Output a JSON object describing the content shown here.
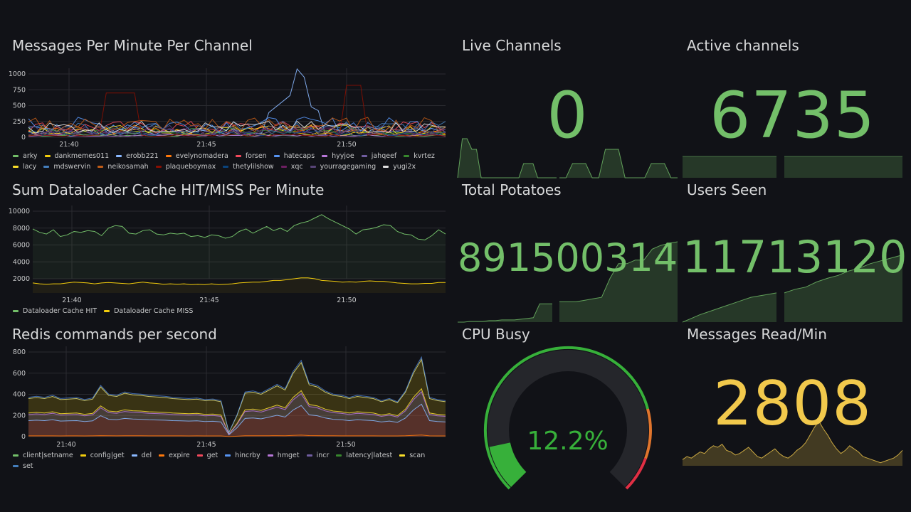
{
  "colors": {
    "green": "#73bf69",
    "yellow": "#f2c94c",
    "grid": "#2a2b30",
    "axis": "#c7c8c9"
  },
  "panels": {
    "messages_per_channel": {
      "title": "Messages Per Minute Per Channel",
      "y_ticks": [
        "1000",
        "750",
        "500",
        "250",
        "0"
      ],
      "x_ticks": [
        "21:40",
        "21:45",
        "21:50"
      ],
      "legend": [
        {
          "name": "arky",
          "color": "#73bf69"
        },
        {
          "name": "dankmemes011",
          "color": "#f2cc0c"
        },
        {
          "name": "erobb221",
          "color": "#8ab8ff"
        },
        {
          "name": "evelynomadera",
          "color": "#ff780a"
        },
        {
          "name": "forsen",
          "color": "#f2495c"
        },
        {
          "name": "hatecaps",
          "color": "#5794f2"
        },
        {
          "name": "hyyjoe",
          "color": "#b877d9"
        },
        {
          "name": "jahqeef",
          "color": "#705da0"
        },
        {
          "name": "kvrtez",
          "color": "#37872d"
        },
        {
          "name": "lacy",
          "color": "#fade2a"
        },
        {
          "name": "mdswervin",
          "color": "#447ebc"
        },
        {
          "name": "neikosamah",
          "color": "#c15c17"
        },
        {
          "name": "plaqueboymax",
          "color": "#890f02"
        },
        {
          "name": "thetylilshow",
          "color": "#0a437c"
        },
        {
          "name": "xqc",
          "color": "#6d1f62"
        },
        {
          "name": "yourragegaming",
          "color": "#584477"
        },
        {
          "name": "yugi2x",
          "color": "#e0e0e0"
        }
      ]
    },
    "dataloader": {
      "title": "Sum Dataloader Cache HIT/MISS Per Minute",
      "y_ticks": [
        "10000",
        "8000",
        "6000",
        "4000",
        "2000"
      ],
      "x_ticks": [
        "21:40",
        "21:45",
        "21:50"
      ],
      "legend": [
        {
          "name": "Dataloader Cache HIT",
          "color": "#73bf69"
        },
        {
          "name": "Dataloader Cache MISS",
          "color": "#f2cc0c"
        }
      ]
    },
    "redis": {
      "title": "Redis commands per second",
      "y_ticks": [
        "800",
        "600",
        "400",
        "200",
        "0"
      ],
      "x_ticks": [
        "21:40",
        "21:45",
        "21:50"
      ],
      "legend": [
        {
          "name": "client|setname",
          "color": "#73bf69"
        },
        {
          "name": "config|get",
          "color": "#f2cc0c"
        },
        {
          "name": "del",
          "color": "#8ab8ff"
        },
        {
          "name": "expire",
          "color": "#ff780a"
        },
        {
          "name": "get",
          "color": "#f2495c"
        },
        {
          "name": "hincrby",
          "color": "#5794f2"
        },
        {
          "name": "hmget",
          "color": "#b877d9"
        },
        {
          "name": "incr",
          "color": "#705da0"
        },
        {
          "name": "latency|latest",
          "color": "#37872d"
        },
        {
          "name": "scan",
          "color": "#fade2a"
        },
        {
          "name": "set",
          "color": "#447ebc"
        }
      ]
    },
    "live_channels": {
      "title": "Live Channels",
      "value": "0"
    },
    "active_channels": {
      "title": "Active channels",
      "value": "6735"
    },
    "total_potatoes": {
      "title": "Total Potatoes",
      "value": "891500314"
    },
    "users_seen": {
      "title": "Users Seen",
      "value": "11713120"
    },
    "cpu_busy": {
      "title": "CPU Busy",
      "value": "12.2%",
      "percent": 12.2
    },
    "messages_read": {
      "title": "Messages Read/Min",
      "value": "2808"
    }
  }
}
